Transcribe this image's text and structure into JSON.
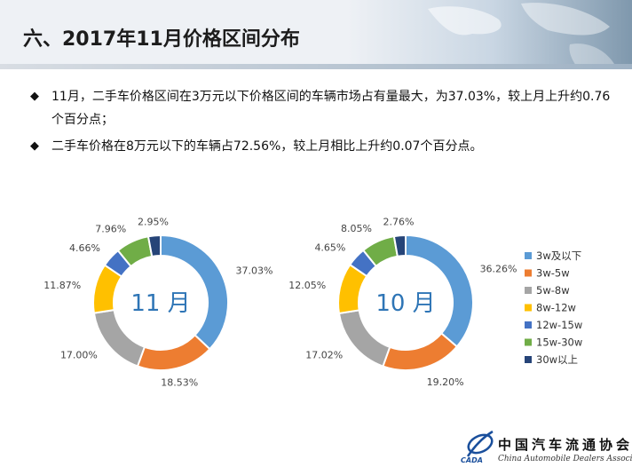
{
  "header": {
    "title": "六、2017年11月价格区间分布"
  },
  "bullets": [
    "11月，二手车价格区间在3万元以下价格区间的车辆市场占有量最大，为37.03%，较上月上升约0.76个百分点；",
    "二手车价格在8万元以下的车辆占72.56%，较上月相比上升约0.07个百分点。"
  ],
  "icons": {
    "bullet": "diamond-bullet-icon",
    "logo": "cada-logo-icon"
  },
  "chart_data": [
    {
      "type": "pie",
      "donut": true,
      "center_label": "11 月",
      "categories": [
        "3w及以下",
        "3w-5w",
        "5w-8w",
        "8w-12w",
        "12w-15w",
        "15w-30w",
        "30w以上"
      ],
      "values": [
        37.03,
        18.53,
        17.0,
        11.87,
        4.66,
        7.96,
        2.95
      ],
      "labels": [
        "37.03%",
        "18.53%",
        "17.00%",
        "11.87%",
        "4.66%",
        "7.96%",
        "2.95%"
      ]
    },
    {
      "type": "pie",
      "donut": true,
      "center_label": "10 月",
      "categories": [
        "3w及以下",
        "3w-5w",
        "5w-8w",
        "8w-12w",
        "12w-15w",
        "15w-30w",
        "30w以上"
      ],
      "values": [
        36.26,
        19.2,
        17.02,
        12.05,
        4.65,
        8.05,
        2.76
      ],
      "labels": [
        "36.26%",
        "19.20%",
        "17.02%",
        "12.05%",
        "4.65%",
        "8.05%",
        "2.76%"
      ]
    }
  ],
  "legend": {
    "placement": "right",
    "items": [
      "3w及以下",
      "3w-5w",
      "5w-8w",
      "8w-12w",
      "12w-15w",
      "15w-30w",
      "30w以上"
    ]
  },
  "colors": [
    "#5B9BD5",
    "#ED7D31",
    "#A5A5A5",
    "#FFC000",
    "#4472C4",
    "#70AD47",
    "#264478"
  ],
  "footer": {
    "org_cn": "中国汽车流通协会",
    "org_en": "China Automobile Dealers Association",
    "abbr": "CADA"
  }
}
